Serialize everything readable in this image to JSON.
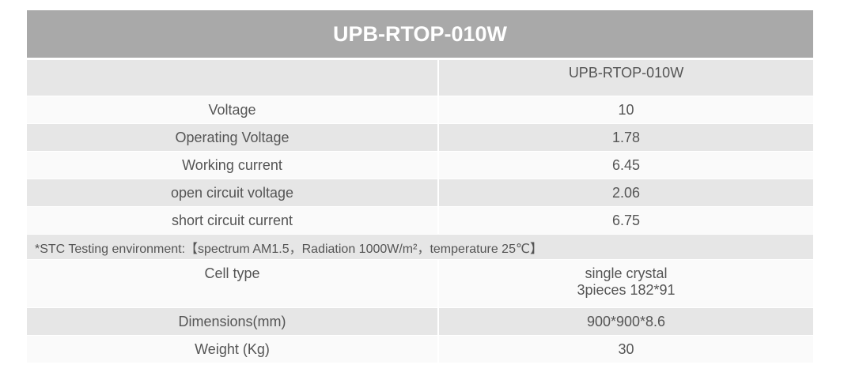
{
  "header": {
    "title": "UPB-RTOP-010W"
  },
  "table": {
    "model_header": "UPB-RTOP-010W",
    "rows_top": [
      [
        "Voltage",
        "10"
      ],
      [
        "Operating Voltage",
        "1.78"
      ],
      [
        "Working current",
        "6.45"
      ],
      [
        "open circuit voltage",
        "2.06"
      ],
      [
        "short circuit current",
        "6.75"
      ]
    ],
    "note": "*STC Testing environment:【spectrum AM1.5，Radiation 1000W/m²，temperature 25℃】",
    "cell_type": {
      "label": "Cell type",
      "lines": [
        "single crystal",
        "3pieces  182*91"
      ]
    },
    "rows_bottom": [
      [
        "Dimensions(mm)",
        "900*900*8.6"
      ],
      [
        "Weight (Kg)",
        "30"
      ]
    ]
  }
}
